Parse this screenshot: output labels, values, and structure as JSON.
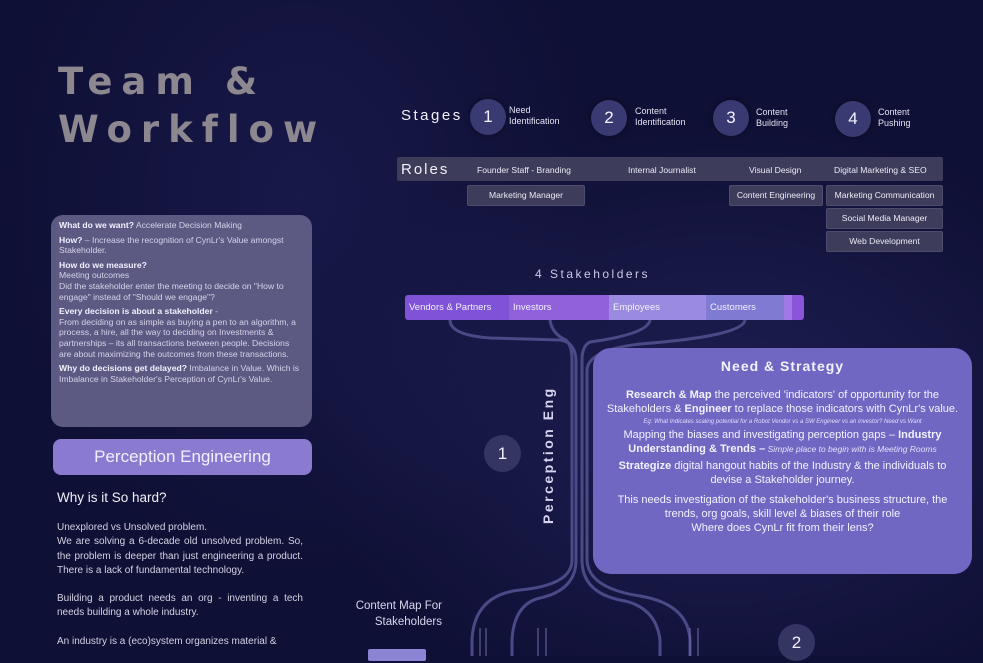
{
  "title": {
    "line1": "Team &",
    "line2": "Workflow"
  },
  "info": [
    {
      "q": "What do we want?",
      "a": " Accelerate Decision Making"
    },
    {
      "q": "How?",
      "a": " – Increase the recognition of CynLr's  Value amongst Stakeholder."
    },
    {
      "q": "How do we measure?",
      "a": "Meeting outcomes\nDid the stakeholder enter the meeting to decide on \"How to engage\" instead of \"Should we engage\"?"
    },
    {
      "q": "Every decision is about a stakeholder",
      "a": " -\nFrom deciding on as simple as buying a pen to an algorithm, a process, a hire, all the way to deciding on Investments & partnerships – its all transactions between people. Decisions are about maximizing the outcomes from these transactions."
    },
    {
      "q": "Why do decisions get delayed?",
      "a": " Imbalance in Value. Which is Imbalance in Stakeholder's Perception of CynLr's Value."
    }
  ],
  "perception_button": "Perception Engineering",
  "why": {
    "title": "Why is it So hard?",
    "p1": "Unexplored vs Unsolved problem.\nWe are solving  a 6-decade old unsolved problem. So, the problem is deeper than just engineering a product. There is a lack of fundamental technology.",
    "p2": "Building a product needs an org - inventing a tech needs building a whole industry.",
    "p3": "An industry is a (eco)system organizes material &"
  },
  "stages": {
    "label": "Stages",
    "items": [
      {
        "num": "1",
        "label": "Need\nIdentification"
      },
      {
        "num": "2",
        "label": "Content\nIdentification"
      },
      {
        "num": "3",
        "label": "Content\nBuilding"
      },
      {
        "num": "4",
        "label": "Content\nPushing"
      }
    ]
  },
  "roles": {
    "label": "Roles",
    "top": [
      "Founder Staff - Branding",
      "Internal Journalist",
      "Visual Design",
      "Digital Marketing & SEO"
    ],
    "marketing_manager": "Marketing Manager",
    "content_engineering": "Content Engineering",
    "col4": [
      "Marketing Communication",
      "Social Media Manager",
      "Web Development"
    ]
  },
  "stakeholders": {
    "label": "4 Stakeholders",
    "items": [
      "Vendors & Partners",
      "Investors",
      "Employees",
      "Customers"
    ]
  },
  "perception_eng_vertical": "Perception Eng",
  "steps": [
    "1",
    "2"
  ],
  "need": {
    "title": "Need & Strategy",
    "p1_b1": "Research & Map",
    "p1_t1": " the perceived 'indicators' of opportunity for the Stakeholders & ",
    "p1_b2": "Engineer",
    "p1_t2": " to replace those indicators with CynLr's value.",
    "small": "Eg: What Indicates scaling potential for a Robot Vendor vs a SW Engineer vs an investor? Need vs Want",
    "p2_t1": "Mapping the biases and investigating perception gaps – ",
    "p2_b1": "Industry Understanding & Trends –",
    "p2_i": " Simple place to begin with is Meeting Rooms",
    "p3_b": "Strategize",
    "p3_t": " digital hangout habits of the Industry & the individuals to devise a Stakeholder journey.",
    "p4": "This needs investigation of the stakeholder's business structure, the trends, org goals, skill level & biases of their role\nWhere does CynLr fit from their lens?"
  },
  "content_map": "Content Map For Stakeholders",
  "colors": {
    "background": "#0f1035",
    "need_box": "#6f67c2",
    "stake_vendors": "#7f52d6",
    "stake_employees": "#9a8ae0"
  }
}
